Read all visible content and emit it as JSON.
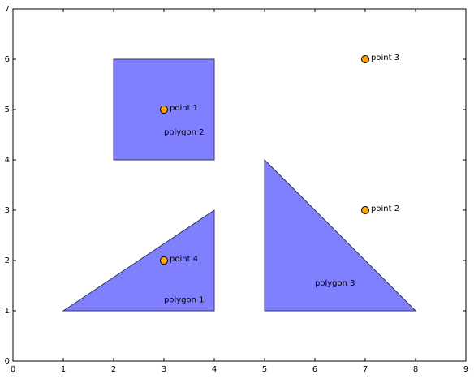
{
  "chart_data": {
    "type": "scatter",
    "polygons": [
      {
        "name": "polygon 1",
        "x": [
          1,
          4,
          4
        ],
        "y": [
          1,
          1,
          3
        ]
      },
      {
        "name": "polygon 2",
        "x": [
          2,
          4,
          4,
          2
        ],
        "y": [
          4,
          4,
          6,
          6
        ]
      },
      {
        "name": "polygon 3",
        "x": [
          5,
          8,
          5
        ],
        "y": [
          1,
          1,
          4
        ]
      }
    ],
    "polygon_color": "#8080ff",
    "points": {
      "names": [
        "point 1",
        "point 2",
        "point 3",
        "point 4"
      ],
      "x": [
        3,
        7,
        7,
        3
      ],
      "y": [
        5,
        3,
        6,
        2
      ],
      "color": "#ffa500"
    },
    "xlim": [
      0,
      9
    ],
    "ylim": [
      0,
      7
    ],
    "xticks": [
      0,
      1,
      2,
      3,
      4,
      5,
      6,
      7,
      8,
      9
    ],
    "yticks": [
      0,
      1,
      2,
      3,
      4,
      5,
      6,
      7
    ]
  }
}
